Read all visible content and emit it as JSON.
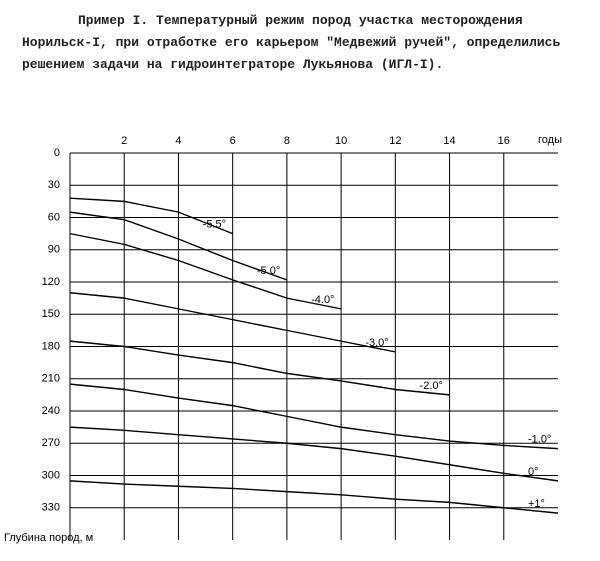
{
  "chart_data": {
    "type": "line",
    "title": "Пример I. Температурный режим пород участка месторождения Норильск-I, при отработке его карьером \"Медвежий ручей\", определились решением задачи на гидроинтеграторе Лукьянова (ИГЛ-I).",
    "x_label": "годы",
    "y_label": "Глубина пород, м",
    "x": [
      0,
      2,
      4,
      6,
      8,
      10,
      12,
      14,
      16,
      18
    ],
    "xlim": [
      0,
      18
    ],
    "xticks": [
      2,
      4,
      6,
      8,
      10,
      12,
      14,
      16
    ],
    "ylim": [
      0,
      360
    ],
    "yticks": [
      0,
      30,
      60,
      90,
      120,
      150,
      180,
      210,
      240,
      270,
      300,
      330
    ],
    "y_inverted": true,
    "grid": true,
    "color": "#000000",
    "series": [
      {
        "name": "-5.5°",
        "values": [
          42,
          45,
          55,
          75,
          null,
          null,
          null,
          null,
          null,
          null
        ]
      },
      {
        "name": "-5.0°",
        "values": [
          55,
          62,
          80,
          100,
          118,
          null,
          null,
          null,
          null,
          null
        ]
      },
      {
        "name": "-4.0°",
        "values": [
          75,
          85,
          100,
          118,
          135,
          145,
          null,
          null,
          null,
          null
        ]
      },
      {
        "name": "-3.0°",
        "values": [
          130,
          135,
          145,
          155,
          165,
          175,
          185,
          null,
          null,
          null
        ]
      },
      {
        "name": "-2.0°",
        "values": [
          175,
          180,
          188,
          195,
          205,
          212,
          220,
          225,
          null,
          null
        ]
      },
      {
        "name": "-1.0°",
        "values": [
          215,
          220,
          228,
          235,
          245,
          255,
          262,
          268,
          272,
          275
        ]
      },
      {
        "name": "0°",
        "values": [
          255,
          258,
          262,
          266,
          270,
          275,
          282,
          290,
          298,
          305
        ]
      },
      {
        "name": "+1°",
        "values": [
          305,
          308,
          310,
          312,
          315,
          318,
          322,
          325,
          330,
          335
        ]
      }
    ]
  }
}
